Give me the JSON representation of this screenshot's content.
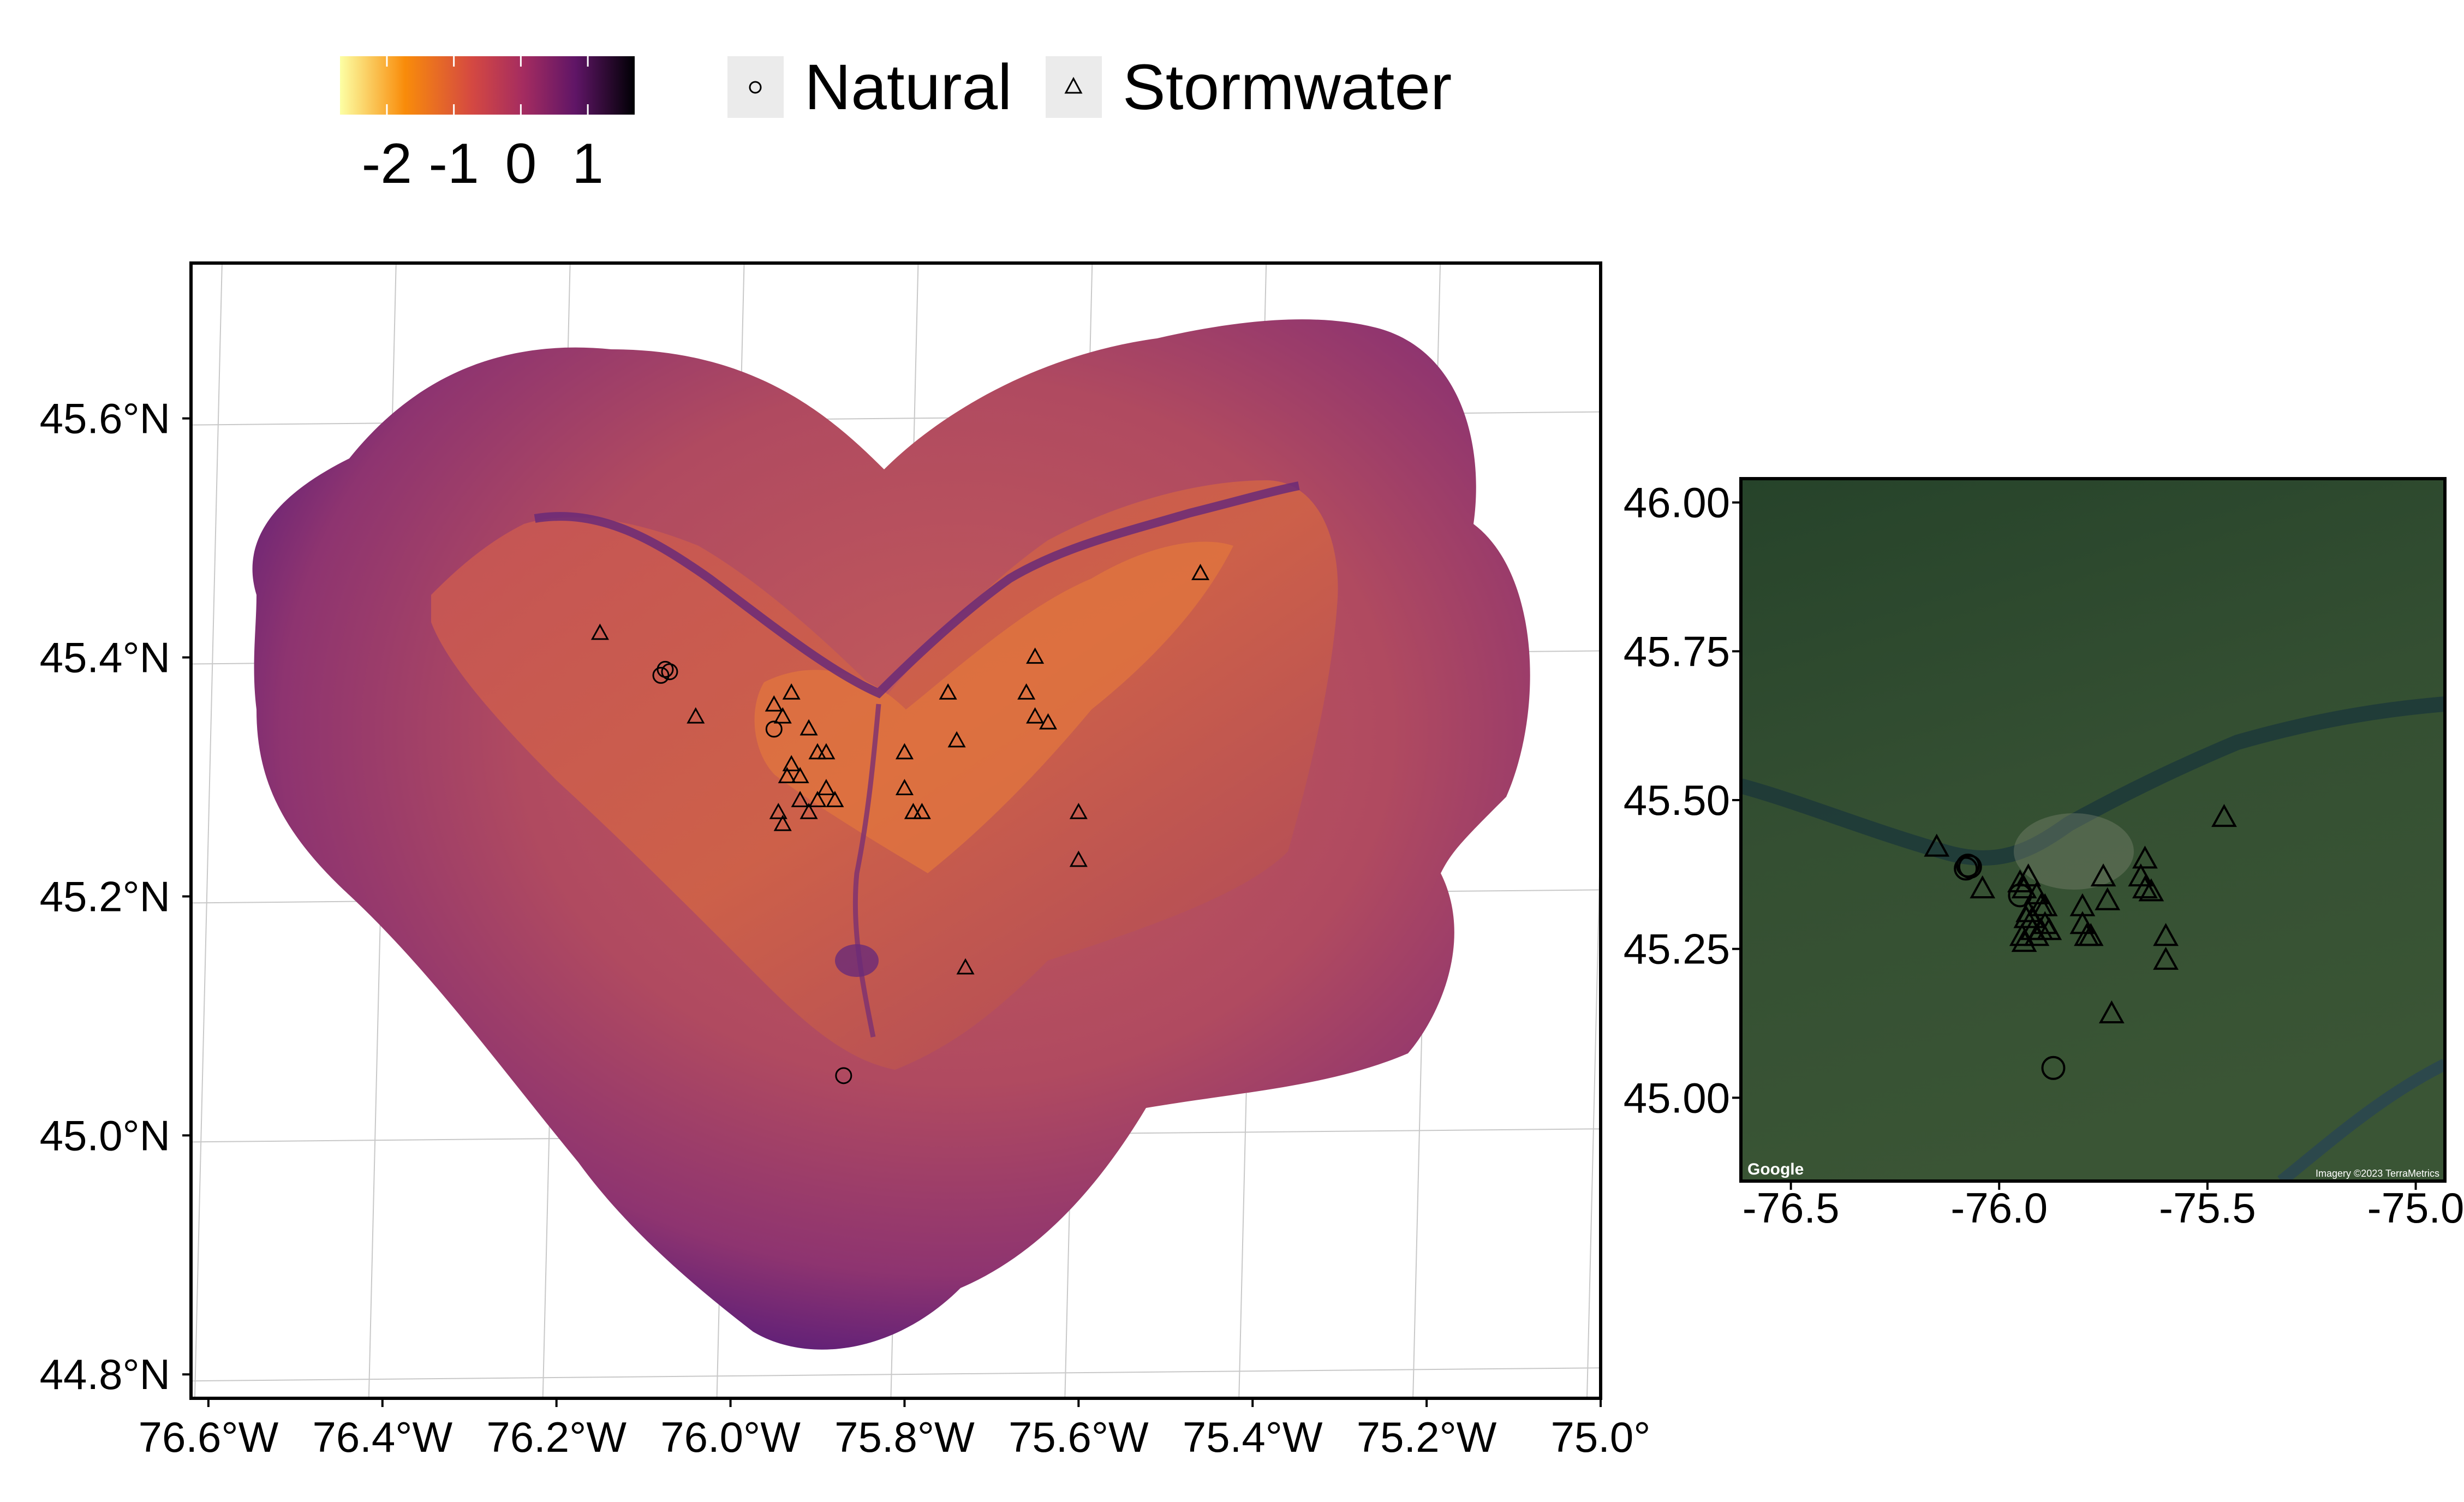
{
  "legend": {
    "colorbar": {
      "ticks": [
        "-2",
        "-1",
        "0",
        "1"
      ],
      "tick_values": [
        -2,
        -1,
        0,
        1
      ],
      "range": [
        -2.7,
        1.7
      ],
      "palette": "inferno-reversed"
    },
    "shapes": [
      {
        "label": "Natural",
        "icon": "circle-icon"
      },
      {
        "label": "Stormwater",
        "icon": "triangle-icon"
      }
    ]
  },
  "main_map": {
    "x_ticks": [
      "76.6°W",
      "76.4°W",
      "76.2°W",
      "76.0°W",
      "75.8°W",
      "75.6°W",
      "75.4°W",
      "75.2°W",
      "75.0°"
    ],
    "x_tick_values": [
      -76.6,
      -76.4,
      -76.2,
      -76.0,
      -75.8,
      -75.6,
      -75.4,
      -75.2,
      -75.0
    ],
    "y_ticks": [
      "45.6°N",
      "45.4°N",
      "45.2°N",
      "45.0°N",
      "44.8°N"
    ],
    "y_tick_values": [
      45.6,
      45.4,
      45.2,
      45.0,
      44.8
    ],
    "xlim": [
      -76.62,
      -75.0
    ],
    "ylim": [
      44.78,
      45.73
    ]
  },
  "inset_map": {
    "x_ticks": [
      "-76.5",
      "-76.0",
      "-75.5",
      "-75.0"
    ],
    "x_tick_values": [
      -76.5,
      -76.0,
      -75.5,
      -75.0
    ],
    "y_ticks": [
      "46.00",
      "45.75",
      "45.50",
      "45.25",
      "45.00"
    ],
    "y_tick_values": [
      46.0,
      45.75,
      45.5,
      45.25,
      45.0
    ],
    "xlim": [
      -76.62,
      -74.93
    ],
    "ylim": [
      44.86,
      46.04
    ],
    "attribution_left": "Google",
    "attribution_right": "Imagery ©2023 TerraMetrics"
  },
  "colors": {
    "surface_high": "#F4893A",
    "surface_mid": "#B94B5D",
    "surface_low": "#6C2A78",
    "satellite": "#2F4F2C"
  },
  "chart_data": {
    "type": "scatter",
    "x_label": "",
    "y_label": "",
    "series": [
      {
        "name": "Natural",
        "marker": "circle",
        "points": [
          {
            "x": -76.08,
            "y": 45.385
          },
          {
            "x": -76.075,
            "y": 45.39
          },
          {
            "x": -76.07,
            "y": 45.388
          },
          {
            "x": -75.95,
            "y": 45.34
          },
          {
            "x": -75.87,
            "y": 45.05
          }
        ]
      },
      {
        "name": "Stormwater",
        "marker": "triangle",
        "points": [
          {
            "x": -76.15,
            "y": 45.42
          },
          {
            "x": -76.04,
            "y": 45.35
          },
          {
            "x": -75.95,
            "y": 45.36
          },
          {
            "x": -75.94,
            "y": 45.35
          },
          {
            "x": -75.93,
            "y": 45.37
          },
          {
            "x": -75.935,
            "y": 45.3
          },
          {
            "x": -75.93,
            "y": 45.31
          },
          {
            "x": -75.92,
            "y": 45.3
          },
          {
            "x": -75.91,
            "y": 45.34
          },
          {
            "x": -75.9,
            "y": 45.32
          },
          {
            "x": -75.89,
            "y": 45.32
          },
          {
            "x": -75.92,
            "y": 45.28
          },
          {
            "x": -75.91,
            "y": 45.27
          },
          {
            "x": -75.9,
            "y": 45.28
          },
          {
            "x": -75.89,
            "y": 45.29
          },
          {
            "x": -75.88,
            "y": 45.28
          },
          {
            "x": -75.945,
            "y": 45.27
          },
          {
            "x": -75.94,
            "y": 45.26
          },
          {
            "x": -75.8,
            "y": 45.32
          },
          {
            "x": -75.8,
            "y": 45.29
          },
          {
            "x": -75.79,
            "y": 45.27
          },
          {
            "x": -75.78,
            "y": 45.27
          },
          {
            "x": -75.75,
            "y": 45.37
          },
          {
            "x": -75.74,
            "y": 45.33
          },
          {
            "x": -75.73,
            "y": 45.14
          },
          {
            "x": -75.66,
            "y": 45.37
          },
          {
            "x": -75.65,
            "y": 45.4
          },
          {
            "x": -75.65,
            "y": 45.35
          },
          {
            "x": -75.635,
            "y": 45.345
          },
          {
            "x": -75.6,
            "y": 45.27
          },
          {
            "x": -75.6,
            "y": 45.23
          },
          {
            "x": -75.46,
            "y": 45.47
          }
        ]
      }
    ]
  }
}
